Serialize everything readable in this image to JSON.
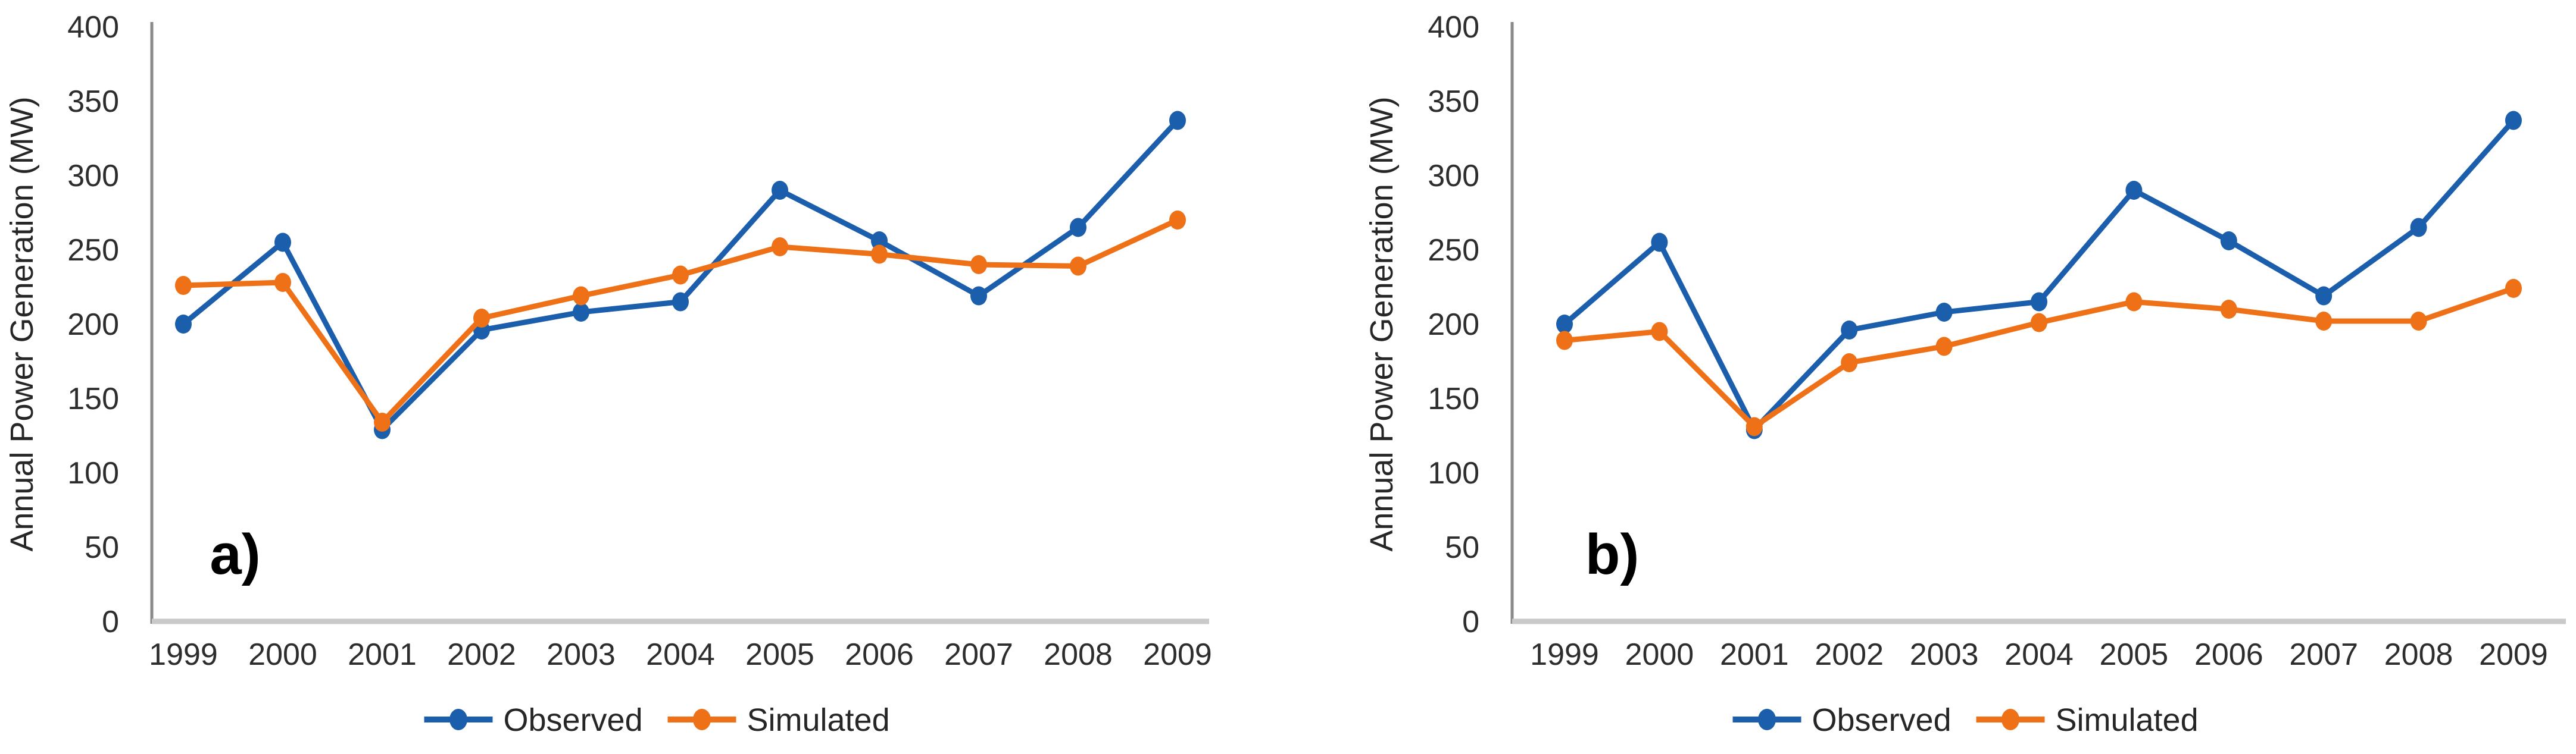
{
  "figure": {
    "description_visible_text_only": "Two side-by-side line charts comparing Observed and Simulated annual power generation",
    "panels": [
      {
        "panel_label": "a)"
      },
      {
        "panel_label": "b)"
      }
    ]
  },
  "chart_data": [
    {
      "type": "line",
      "panel": "a)",
      "title": "",
      "xlabel": "",
      "ylabel": "Annual Power Generation (MW)",
      "x_categories": [
        "1999",
        "2000",
        "2001",
        "2002",
        "2003",
        "2004",
        "2005",
        "2006",
        "2007",
        "2008",
        "2009"
      ],
      "ylim": [
        0,
        400
      ],
      "ytick_step": 50,
      "y_ticks": [
        0,
        50,
        100,
        150,
        200,
        250,
        300,
        350,
        400
      ],
      "grid": false,
      "legend_position": "bottom",
      "series": [
        {
          "name": "Observed",
          "color": "#1b5eac",
          "marker": "circle",
          "values": [
            200,
            255,
            129,
            196,
            208,
            215,
            290,
            256,
            219,
            265,
            337
          ]
        },
        {
          "name": "Simulated",
          "color": "#ee7118",
          "marker": "circle",
          "values": [
            226,
            228,
            134,
            204,
            219,
            233,
            252,
            247,
            240,
            239,
            270
          ]
        }
      ]
    },
    {
      "type": "line",
      "panel": "b)",
      "title": "",
      "xlabel": "",
      "ylabel": "Annual Power Generation (MW)",
      "x_categories": [
        "1999",
        "2000",
        "2001",
        "2002",
        "2003",
        "2004",
        "2005",
        "2006",
        "2007",
        "2008",
        "2009"
      ],
      "ylim": [
        0,
        400
      ],
      "ytick_step": 50,
      "y_ticks": [
        0,
        50,
        100,
        150,
        200,
        250,
        300,
        350,
        400
      ],
      "grid": false,
      "legend_position": "bottom",
      "series": [
        {
          "name": "Observed",
          "color": "#1b5eac",
          "marker": "circle",
          "values": [
            200,
            255,
            129,
            196,
            208,
            215,
            290,
            256,
            219,
            265,
            337
          ]
        },
        {
          "name": "Simulated",
          "color": "#ee7118",
          "marker": "circle",
          "values": [
            189,
            195,
            131,
            174,
            185,
            201,
            215,
            210,
            202,
            202,
            224
          ]
        }
      ]
    }
  ],
  "colors": {
    "observed_series": "#1b5eac",
    "simulated_series": "#ee7118",
    "y_axis_line": "#8a8a8a",
    "x_axis_line": "#c9c9c9",
    "tick_text": "#2d2d2d",
    "background": "#ffffff"
  }
}
